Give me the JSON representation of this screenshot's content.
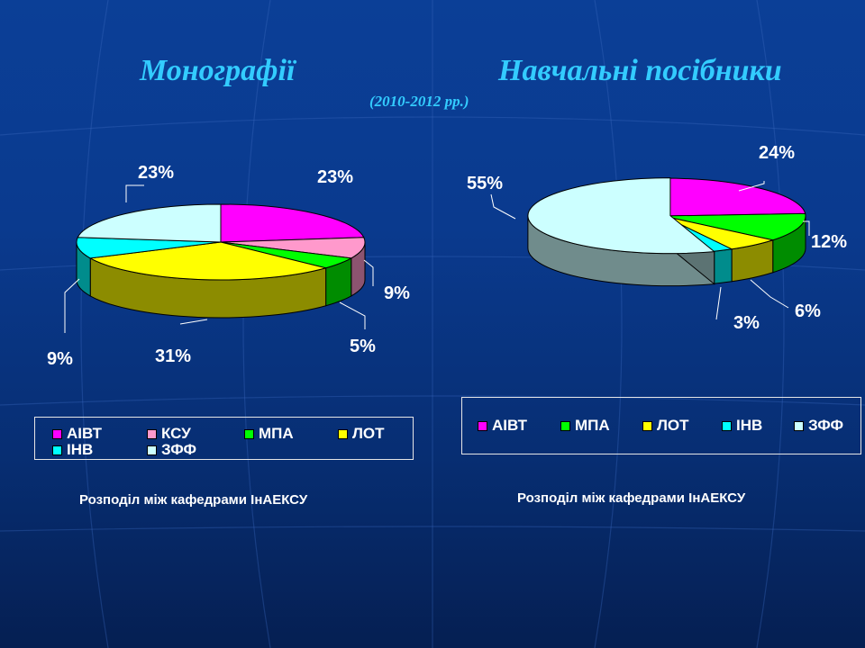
{
  "header": {
    "title_left": "Монографії",
    "title_right": "Навчальні посібники",
    "subtitle": "(2010-2012 рр.)"
  },
  "colors": {
    "АІВТ": "#ff00ff",
    "КСУ": "#ff99cc",
    "МПА": "#00ff00",
    "ЛОТ": "#ffff00",
    "ІНВ": "#00ffff",
    "ЗФФ": "#ccffff"
  },
  "chart_data": [
    {
      "type": "pie",
      "categories": [
        "АІВТ",
        "КСУ",
        "МПА",
        "ЛОТ",
        "ІНВ",
        "ЗФФ"
      ],
      "values": [
        23,
        9,
        5,
        31,
        9,
        23
      ],
      "labels": [
        "23%",
        "9%",
        "5%",
        "31%",
        "9%",
        "23%"
      ],
      "legend": "bottom",
      "caption": "Розподіл між кафедрами ІнАЕКСУ"
    },
    {
      "type": "pie",
      "categories": [
        "АІВТ",
        "МПА",
        "ЛОТ",
        "ІНВ",
        "ЗФФ"
      ],
      "values": [
        24,
        12,
        6,
        3,
        55
      ],
      "labels": [
        "24%",
        "12%",
        "6%",
        "3%",
        "55%"
      ],
      "exploded": [
        "ЗФФ"
      ],
      "legend": "bottom",
      "caption": "Розподіл між кафедрами ІнАЕКСУ"
    }
  ]
}
